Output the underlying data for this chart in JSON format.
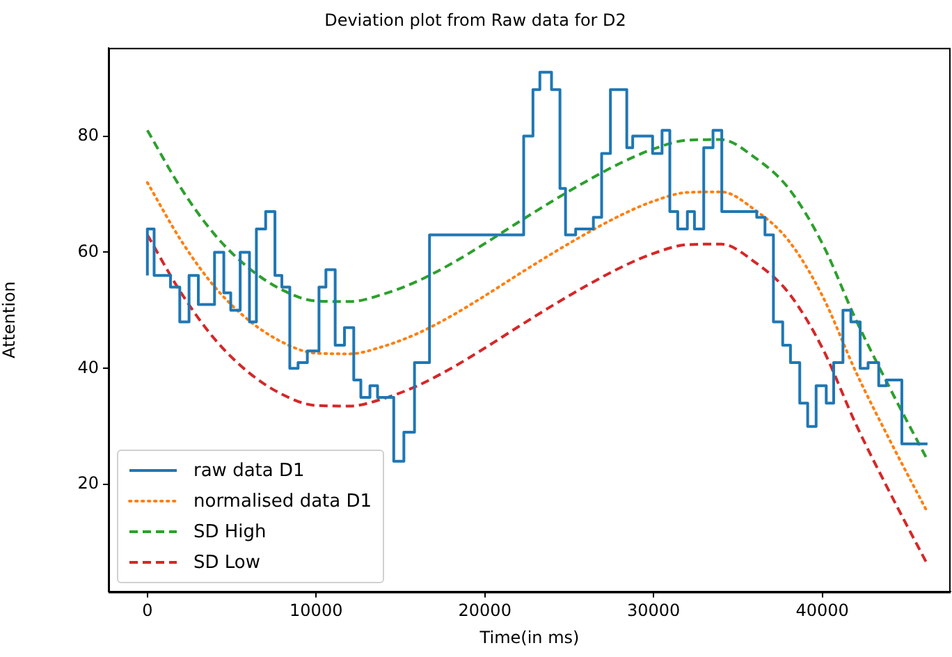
{
  "chart_data": {
    "type": "line",
    "title": "Deviation plot from Raw data for D2",
    "xlabel": "Time(in ms)",
    "ylabel": "Attention",
    "xlim": [
      -2300,
      47600
    ],
    "ylim": [
      1.5,
      95.2
    ],
    "xticks": [
      0,
      10000,
      20000,
      30000,
      40000
    ],
    "yticks": [
      20,
      40,
      60,
      80
    ],
    "grid": false,
    "legend": "bottom left",
    "series": [
      {
        "name": "raw data D1",
        "type": "step",
        "color": "#1f77b4",
        "line_style": "solid",
        "x": [
          0,
          400,
          1370,
          1920,
          2470,
          3020,
          3980,
          4530,
          4940,
          5500,
          6050,
          6460,
          7010,
          7560,
          7970,
          8440,
          8930,
          9480,
          10170,
          10580,
          11130,
          11680,
          12230,
          12650,
          13190,
          13640,
          14600,
          15200,
          15830,
          16720,
          22300,
          22850,
          23260,
          23950,
          24450,
          24780,
          25380,
          26430,
          26920,
          27440,
          28410,
          28760,
          29940,
          30500,
          30960,
          31430,
          32000,
          32420,
          32970,
          33520,
          34040,
          36110,
          36600,
          37100,
          37650,
          38110,
          38660,
          39130,
          39630,
          40230,
          40670,
          41220,
          41690,
          42240,
          42710,
          43340,
          43800,
          44710,
          45260,
          46230
        ],
        "values": [
          56,
          64,
          56,
          54,
          48,
          56,
          51,
          60,
          53,
          50,
          60,
          48,
          64,
          67,
          56,
          54,
          40,
          41,
          43,
          54,
          57,
          44,
          47,
          38,
          35,
          37,
          35,
          24,
          29,
          41,
          63,
          80,
          88,
          91,
          88,
          71,
          63,
          64,
          66,
          77,
          88,
          78,
          80,
          77,
          81,
          67,
          64,
          67,
          64,
          78,
          81,
          67,
          66,
          63,
          48,
          44,
          41,
          34,
          30,
          37,
          34,
          41,
          50,
          48,
          40,
          41,
          37,
          38,
          27,
          27
        ]
      },
      {
        "name": "normalised data D1",
        "type": "line",
        "color": "#ff7f0e",
        "line_style": "dotted",
        "x": [
          0,
          2000,
          4000,
          6000,
          8000,
          10000,
          12000,
          14000,
          16000,
          18000,
          20000,
          22000,
          24000,
          26000,
          28000,
          30000,
          32000,
          34000,
          36000,
          38000,
          40000,
          42000,
          44000,
          46230
        ],
        "values": [
          72,
          62,
          54,
          48.3,
          44.5,
          42.6,
          42.5,
          43.8,
          46,
          49,
          52.5,
          56.2,
          59.8,
          63.2,
          66.3,
          68.8,
          70.3,
          70.4,
          67.3,
          62,
          52.5,
          39.3,
          27.6,
          15.2
        ]
      },
      {
        "name": "SD High",
        "type": "line",
        "color": "#2ca02c",
        "line_style": "dashed",
        "x": [
          0,
          2000,
          4000,
          6000,
          8000,
          10000,
          12000,
          14000,
          16000,
          18000,
          20000,
          22000,
          24000,
          26000,
          28000,
          30000,
          32000,
          34000,
          36000,
          38000,
          40000,
          42000,
          44000,
          46230
        ],
        "values": [
          81,
          71,
          63,
          57.3,
          53.5,
          51.6,
          51.5,
          52.8,
          55,
          58,
          61.5,
          65.2,
          68.8,
          72.2,
          75.3,
          77.8,
          79.3,
          79.4,
          76.3,
          71,
          61.5,
          48.3,
          36.6,
          24.2
        ]
      },
      {
        "name": "SD Low",
        "type": "line",
        "color": "#d62728",
        "line_style": "dashed",
        "x": [
          0,
          2000,
          4000,
          6000,
          8000,
          10000,
          12000,
          14000,
          16000,
          18000,
          20000,
          22000,
          24000,
          26000,
          28000,
          30000,
          32000,
          34000,
          36000,
          38000,
          40000,
          42000,
          44000,
          46230
        ],
        "values": [
          63,
          53,
          45,
          39.3,
          35.5,
          33.6,
          33.5,
          34.8,
          37,
          40,
          43.5,
          47.2,
          50.8,
          54.2,
          57.3,
          59.8,
          61.3,
          61.4,
          58.3,
          53,
          43.5,
          30.3,
          18.6,
          6.2
        ]
      }
    ]
  }
}
